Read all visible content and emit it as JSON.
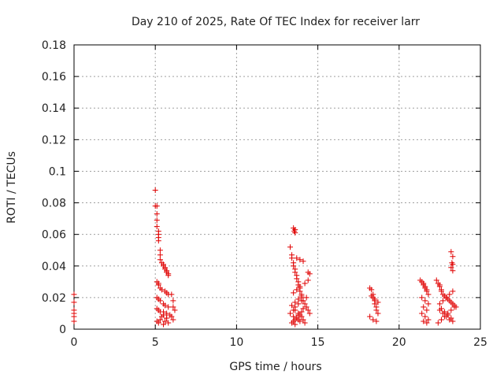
{
  "chart_data": {
    "type": "scatter",
    "title": "Day 210 of 2025, Rate Of TEC Index for receiver larr",
    "xlabel": "GPS time / hours",
    "ylabel": "ROTI / TECUs",
    "xlim": [
      0,
      25
    ],
    "ylim": [
      0,
      0.18
    ],
    "xticks": [
      0,
      5,
      10,
      15,
      20,
      25
    ],
    "yticks": [
      0,
      0.02,
      0.04,
      0.06,
      0.08,
      0.1,
      0.12,
      0.14,
      0.16,
      0.18
    ],
    "xtick_labels": [
      "0",
      "5",
      "10",
      "15",
      "20",
      "25"
    ],
    "ytick_labels": [
      "0",
      "0.02",
      "0.04",
      "0.06",
      "0.08",
      "0.1",
      "0.12",
      "0.14",
      "0.16",
      "0.18"
    ],
    "grid": true,
    "marker_color": "#e00000",
    "x": [
      0.0,
      0.0,
      0.0,
      0.0,
      0.0,
      0.0,
      5.0,
      5.0,
      5.1,
      5.1,
      5.1,
      5.1,
      5.2,
      5.2,
      5.2,
      5.2,
      5.3,
      5.3,
      5.3,
      5.4,
      5.5,
      5.5,
      5.6,
      5.6,
      5.7,
      5.7,
      5.8,
      5.8,
      5.1,
      5.2,
      5.2,
      5.3,
      5.4,
      5.6,
      5.7,
      5.8,
      5.1,
      5.2,
      5.3,
      5.5,
      5.6,
      5.8,
      5.2,
      5.5,
      5.7,
      5.9,
      6.0,
      6.1,
      6.1,
      6.2,
      6.0,
      6.1,
      5.1,
      5.2,
      5.3,
      5.4,
      5.5,
      5.6,
      5.7,
      5.8,
      5.1,
      5.3,
      5.5,
      5.7,
      13.3,
      13.4,
      13.5,
      13.5,
      13.6,
      13.6,
      13.7,
      13.7,
      13.8,
      13.8,
      13.9,
      13.9,
      14.0,
      14.0,
      14.1,
      14.2,
      14.3,
      14.4,
      14.5,
      13.5,
      13.6,
      13.7,
      13.8,
      13.9,
      14.0,
      14.1,
      13.4,
      13.6,
      13.8,
      14.0,
      13.5,
      13.7,
      13.9,
      14.2,
      14.4,
      13.3,
      13.5,
      13.6,
      13.8,
      14.0,
      14.3,
      13.5,
      13.6,
      13.55,
      13.6,
      13.4,
      13.7,
      13.9,
      14.1,
      14.4,
      14.5,
      13.4,
      13.6,
      13.8,
      14.0,
      14.2,
      13.5,
      13.7,
      13.9,
      14.1,
      13.6,
      13.8,
      18.2,
      18.3,
      18.4,
      18.4,
      18.5,
      18.5,
      18.6,
      18.6,
      18.7,
      18.2,
      18.4,
      18.6,
      18.3,
      18.5,
      18.7,
      21.3,
      21.4,
      21.5,
      21.5,
      21.6,
      21.6,
      21.7,
      21.7,
      21.8,
      21.4,
      21.6,
      21.8,
      21.5,
      21.7,
      21.4,
      21.6,
      21.8,
      21.5,
      21.7,
      22.3,
      22.4,
      22.5,
      22.5,
      22.6,
      22.6,
      22.7,
      22.8,
      22.9,
      23.0,
      23.1,
      23.2,
      23.3,
      23.4,
      23.5,
      22.5,
      22.7,
      22.9,
      23.1,
      23.3,
      22.4,
      22.6,
      22.8,
      23.0,
      23.2,
      23.4,
      22.5,
      22.7,
      22.9,
      23.1,
      23.3,
      22.6,
      22.8,
      23.0,
      23.2,
      23.2,
      23.3,
      23.25,
      23.3,
      23.2,
      23.3
    ],
    "y": [
      0.022,
      0.017,
      0.012,
      0.01,
      0.008,
      0.005,
      0.088,
      0.078,
      0.078,
      0.073,
      0.069,
      0.065,
      0.062,
      0.06,
      0.058,
      0.056,
      0.05,
      0.047,
      0.044,
      0.042,
      0.041,
      0.04,
      0.039,
      0.038,
      0.037,
      0.036,
      0.035,
      0.034,
      0.03,
      0.029,
      0.028,
      0.026,
      0.025,
      0.024,
      0.023,
      0.022,
      0.02,
      0.019,
      0.018,
      0.016,
      0.015,
      0.014,
      0.012,
      0.011,
      0.01,
      0.009,
      0.022,
      0.018,
      0.014,
      0.012,
      0.008,
      0.006,
      0.005,
      0.004,
      0.006,
      0.008,
      0.003,
      0.005,
      0.007,
      0.004,
      0.013,
      0.011,
      0.009,
      0.007,
      0.052,
      0.045,
      0.042,
      0.04,
      0.038,
      0.036,
      0.034,
      0.032,
      0.03,
      0.028,
      0.026,
      0.024,
      0.022,
      0.02,
      0.018,
      0.016,
      0.014,
      0.012,
      0.01,
      0.008,
      0.006,
      0.007,
      0.009,
      0.005,
      0.011,
      0.013,
      0.015,
      0.017,
      0.019,
      0.021,
      0.023,
      0.025,
      0.027,
      0.029,
      0.031,
      0.01,
      0.012,
      0.014,
      0.016,
      0.018,
      0.02,
      0.064,
      0.063,
      0.062,
      0.061,
      0.047,
      0.045,
      0.044,
      0.043,
      0.036,
      0.035,
      0.004,
      0.003,
      0.006,
      0.008,
      0.004,
      0.005,
      0.007,
      0.009,
      0.006,
      0.012,
      0.01,
      0.026,
      0.025,
      0.022,
      0.02,
      0.018,
      0.016,
      0.014,
      0.012,
      0.01,
      0.008,
      0.006,
      0.005,
      0.021,
      0.019,
      0.017,
      0.031,
      0.03,
      0.029,
      0.028,
      0.027,
      0.026,
      0.025,
      0.024,
      0.022,
      0.02,
      0.018,
      0.016,
      0.014,
      0.012,
      0.01,
      0.008,
      0.006,
      0.005,
      0.004,
      0.031,
      0.029,
      0.028,
      0.027,
      0.025,
      0.024,
      0.022,
      0.021,
      0.02,
      0.019,
      0.018,
      0.017,
      0.016,
      0.015,
      0.014,
      0.012,
      0.01,
      0.008,
      0.006,
      0.005,
      0.004,
      0.006,
      0.008,
      0.01,
      0.012,
      0.014,
      0.016,
      0.018,
      0.02,
      0.022,
      0.024,
      0.013,
      0.011,
      0.009,
      0.007,
      0.049,
      0.046,
      0.042,
      0.041,
      0.039,
      0.037
    ]
  }
}
